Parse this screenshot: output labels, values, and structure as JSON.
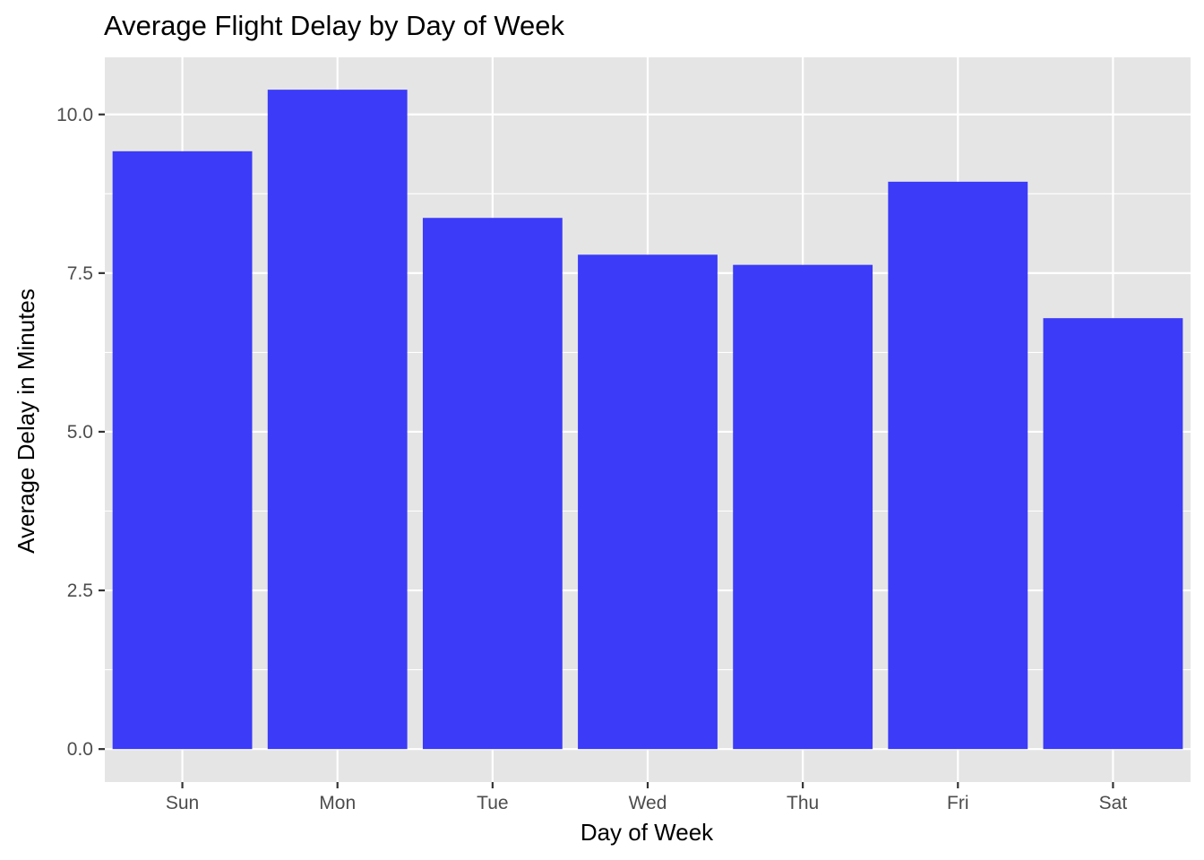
{
  "chart_data": {
    "type": "bar",
    "title": "Average Flight Delay by Day of Week",
    "xlabel": "Day of Week",
    "ylabel": "Average Delay in Minutes",
    "categories": [
      "Sun",
      "Mon",
      "Tue",
      "Wed",
      "Thu",
      "Fri",
      "Sat"
    ],
    "values": [
      9.42,
      10.39,
      8.37,
      7.79,
      7.63,
      8.94,
      6.79
    ],
    "ylim": [
      -0.52,
      10.9
    ],
    "yticks": [
      0.0,
      2.5,
      5.0,
      7.5,
      10.0
    ],
    "ytick_labels": [
      "0.0",
      "2.5",
      "5.0",
      "7.5",
      "10.0"
    ],
    "grid": true,
    "legend": "none",
    "colors": {
      "bar": "#3B3BF8",
      "panel_background": "#E5E5E5",
      "grid_line": "#FFFFFF",
      "tick_label": "#4D4D4D",
      "axis_tick": "#333333"
    }
  }
}
